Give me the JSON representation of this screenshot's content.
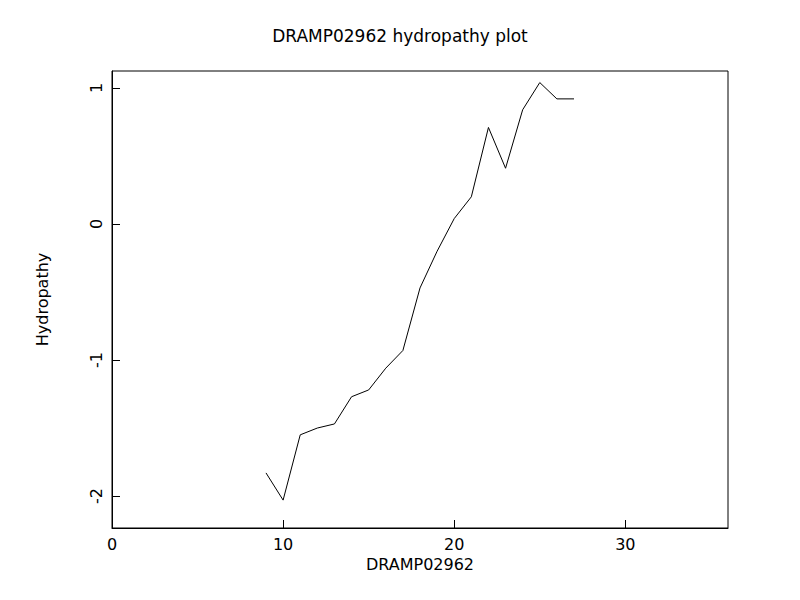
{
  "chart_data": {
    "type": "line",
    "title": "DRAMP02962 hydropathy plot",
    "x_label": "DRAMP02962",
    "y_label": "Hydropathy",
    "x": [
      9,
      10,
      11,
      12,
      13,
      14,
      15,
      16,
      17,
      18,
      19,
      20,
      21,
      22,
      23,
      24,
      25,
      26,
      27
    ],
    "values": [
      -1.83,
      -2.03,
      -1.55,
      -1.5,
      -1.47,
      -1.27,
      -1.22,
      -1.06,
      -0.93,
      -0.47,
      -0.2,
      0.04,
      0.2,
      0.71,
      0.41,
      0.84,
      1.04,
      0.92,
      0.92
    ],
    "color": "#000000",
    "marker": "none",
    "xlim": [
      0,
      36
    ],
    "xticks": [
      0,
      10,
      20,
      30
    ],
    "ylim": [
      -2.235,
      1.125
    ],
    "yticks": [
      -2,
      -1,
      0,
      1
    ],
    "grid": false
  }
}
